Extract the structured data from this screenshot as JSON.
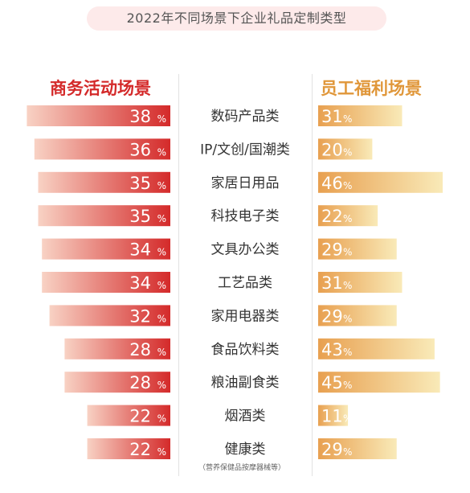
{
  "title": "2022年不同场景下企业礼品定制类型",
  "left_heading": "商务活动场景",
  "right_heading": "员工福利场景",
  "footnote": "（营养保健品按摩器械等）",
  "chart_data": {
    "type": "bar",
    "title": "2022年不同场景下企业礼品定制类型",
    "categories": [
      "数码产品类",
      "IP/文创/国潮类",
      "家居日用品",
      "科技电子类",
      "文具办公类",
      "工艺品类",
      "家用电器类",
      "食品饮料类",
      "粮油副食类",
      "烟酒类",
      "健康类"
    ],
    "series": [
      {
        "name": "商务活动场景",
        "values": [
          38,
          36,
          35,
          35,
          34,
          34,
          32,
          28,
          28,
          22,
          22
        ],
        "color": "#d42a2a",
        "direction": "left"
      },
      {
        "name": "员工福利场景",
        "values": [
          31,
          20,
          46,
          22,
          29,
          31,
          29,
          43,
          45,
          11,
          29
        ],
        "color": "#e8a050",
        "direction": "right"
      }
    ],
    "unit": "%",
    "legend": "top"
  }
}
